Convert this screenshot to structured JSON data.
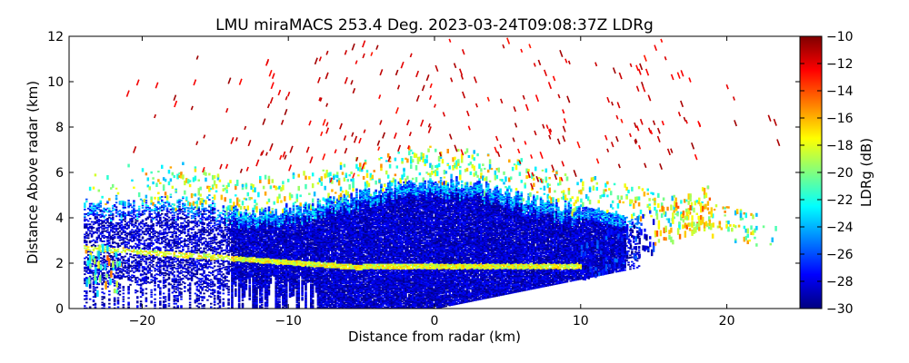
{
  "chart_data": {
    "type": "heatmap",
    "title": "LMU miraMACS 253.4 Deg. 2023-03-24T09:08:37Z  LDRg",
    "xlabel": "Distance from radar (km)",
    "ylabel": "Distance Above radar  (km)",
    "xlim": [
      -25,
      25
    ],
    "ylim": [
      0,
      12
    ],
    "x_ticks": [
      -20,
      -10,
      0,
      10,
      20
    ],
    "y_ticks": [
      0,
      2,
      4,
      6,
      8,
      10,
      12
    ],
    "colorbar": {
      "label": "LDRg (dB)",
      "range": [
        -30,
        -10
      ],
      "ticks": [
        -30,
        -28,
        -26,
        -24,
        -22,
        -20,
        -18,
        -16,
        -14,
        -12,
        -10
      ],
      "colormap": "jet"
    },
    "scan_azimuth_deg": 253.4,
    "regions": [
      {
        "name": "cloud body",
        "ldr_db": -29,
        "height_km": [
          1.0,
          5.0
        ]
      },
      {
        "name": "melting layer",
        "ldr_db": -18,
        "height_km": [
          1.7,
          2.3
        ]
      },
      {
        "name": "cloud top edge",
        "ldr_db": -21,
        "height_km": [
          5.0,
          6.5
        ]
      },
      {
        "name": "sparse high echoes",
        "ldr_db": -11,
        "height_km": [
          6.0,
          11.8
        ]
      }
    ]
  }
}
